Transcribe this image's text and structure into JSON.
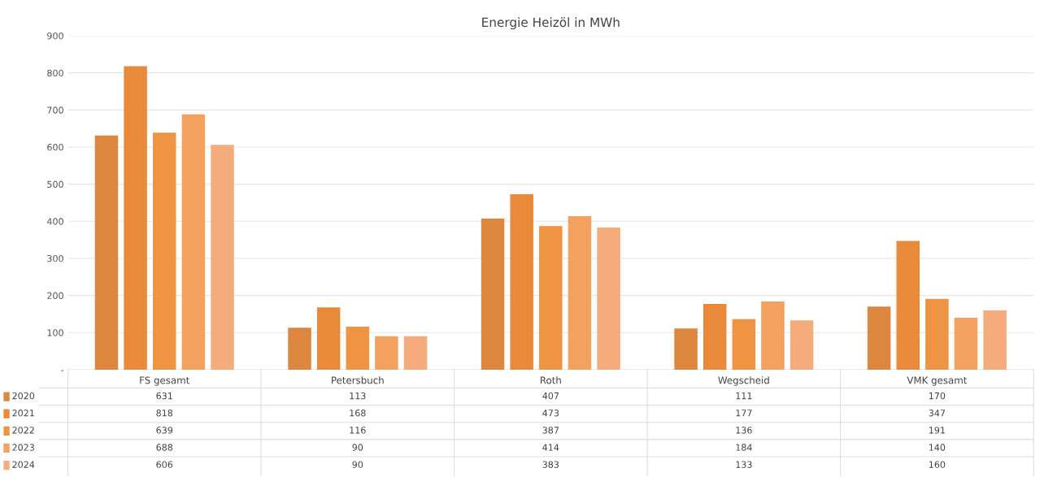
{
  "chart_data": {
    "type": "bar",
    "title": "Energie Heizöl in MWh",
    "categories": [
      "FS gesamt",
      "Petersbuch",
      "Roth",
      "Wegscheid",
      "VMK gesamt"
    ],
    "series": [
      {
        "name": "2020",
        "color": "#dc8640",
        "values": [
          631,
          113,
          407,
          111,
          170
        ]
      },
      {
        "name": "2021",
        "color": "#e98a3a",
        "values": [
          818,
          168,
          473,
          177,
          347
        ]
      },
      {
        "name": "2022",
        "color": "#ef9443",
        "values": [
          639,
          116,
          387,
          136,
          191
        ]
      },
      {
        "name": "2023",
        "color": "#f2a25e",
        "values": [
          688,
          90,
          414,
          184,
          140
        ]
      },
      {
        "name": "2024",
        "color": "#f5ab7c",
        "values": [
          606,
          90,
          383,
          133,
          160
        ]
      }
    ],
    "ylim": [
      0,
      900
    ],
    "yticks": [
      {
        "value": 0,
        "label": "-"
      },
      100,
      200,
      300,
      400,
      500,
      600,
      700,
      800,
      900
    ],
    "grid": "y",
    "legend": "bottom",
    "data_labels": true
  }
}
